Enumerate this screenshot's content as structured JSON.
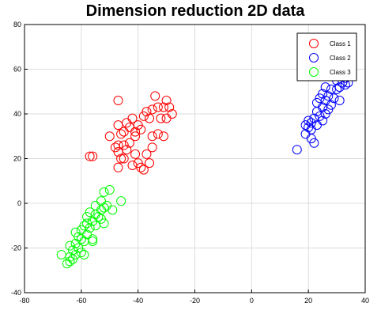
{
  "chart_data": {
    "type": "scatter",
    "title": "Dimension reduction 2D data",
    "xlabel": "",
    "ylabel": "",
    "xlim": [
      -80,
      40
    ],
    "ylim": [
      -40,
      80
    ],
    "xticks": [
      -80,
      -60,
      -40,
      -20,
      0,
      20,
      40
    ],
    "yticks": [
      -40,
      -20,
      0,
      20,
      40,
      60,
      80
    ],
    "grid": true,
    "legend_position": "top-right",
    "marker": "open-circle",
    "series": [
      {
        "name": "Class 1",
        "color": "#ff0000",
        "points": [
          [
            -47,
            46
          ],
          [
            -34,
            48
          ],
          [
            -30,
            46
          ],
          [
            -33,
            43
          ],
          [
            -31,
            43
          ],
          [
            -29,
            43
          ],
          [
            -35,
            42
          ],
          [
            -37,
            41
          ],
          [
            -28,
            40
          ],
          [
            -38,
            39
          ],
          [
            -42,
            38
          ],
          [
            -36,
            38
          ],
          [
            -32,
            38
          ],
          [
            -30,
            38
          ],
          [
            -44,
            36
          ],
          [
            -40,
            35
          ],
          [
            -47,
            35
          ],
          [
            -43,
            34
          ],
          [
            -39,
            33
          ],
          [
            -41,
            32
          ],
          [
            -45,
            32
          ],
          [
            -46,
            31
          ],
          [
            -33,
            31
          ],
          [
            -35,
            30
          ],
          [
            -31,
            30
          ],
          [
            -50,
            30
          ],
          [
            -41,
            30
          ],
          [
            -43,
            27
          ],
          [
            -45,
            26
          ],
          [
            -47,
            26
          ],
          [
            -48,
            25
          ],
          [
            -44,
            24
          ],
          [
            -35,
            25
          ],
          [
            -47,
            23
          ],
          [
            -57,
            21
          ],
          [
            -56,
            21
          ],
          [
            -41,
            22
          ],
          [
            -37,
            22
          ],
          [
            -46,
            20
          ],
          [
            -45,
            20
          ],
          [
            -40,
            18
          ],
          [
            -36,
            18
          ],
          [
            -42,
            17
          ],
          [
            -39,
            16
          ],
          [
            -47,
            16
          ],
          [
            -38,
            15
          ]
        ]
      },
      {
        "name": "Class 2",
        "color": "#0000ff",
        "points": [
          [
            35,
            61
          ],
          [
            32,
            57
          ],
          [
            33,
            56
          ],
          [
            30,
            55
          ],
          [
            32,
            54
          ],
          [
            34,
            54
          ],
          [
            33,
            53
          ],
          [
            31,
            52
          ],
          [
            26,
            52
          ],
          [
            28,
            51
          ],
          [
            30,
            51
          ],
          [
            25,
            49
          ],
          [
            27,
            48
          ],
          [
            24,
            47
          ],
          [
            29,
            47
          ],
          [
            26,
            46
          ],
          [
            31,
            46
          ],
          [
            23,
            45
          ],
          [
            28,
            44
          ],
          [
            25,
            43
          ],
          [
            27,
            42
          ],
          [
            23,
            41
          ],
          [
            26,
            40
          ],
          [
            24,
            39
          ],
          [
            22,
            38
          ],
          [
            25,
            37
          ],
          [
            20,
            37
          ],
          [
            21,
            36
          ],
          [
            19,
            35
          ],
          [
            23,
            35
          ],
          [
            20,
            34
          ],
          [
            21,
            33
          ],
          [
            19,
            31
          ],
          [
            21,
            29
          ],
          [
            22,
            27
          ],
          [
            16,
            24
          ]
        ]
      },
      {
        "name": "Class 3",
        "color": "#00ff00",
        "points": [
          [
            -50,
            6
          ],
          [
            -52,
            5
          ],
          [
            -46,
            1
          ],
          [
            -53,
            1
          ],
          [
            -55,
            -1
          ],
          [
            -51,
            -1
          ],
          [
            -52,
            -2
          ],
          [
            -49,
            -3
          ],
          [
            -53,
            -3
          ],
          [
            -57,
            -4
          ],
          [
            -55,
            -5
          ],
          [
            -54,
            -6
          ],
          [
            -58,
            -6
          ],
          [
            -53,
            -7
          ],
          [
            -56,
            -8
          ],
          [
            -52,
            -9
          ],
          [
            -58,
            -9
          ],
          [
            -55,
            -10
          ],
          [
            -59,
            -10
          ],
          [
            -57,
            -11
          ],
          [
            -60,
            -12
          ],
          [
            -62,
            -13
          ],
          [
            -58,
            -14
          ],
          [
            -61,
            -15
          ],
          [
            -60,
            -16
          ],
          [
            -56,
            -16
          ],
          [
            -59,
            -17
          ],
          [
            -62,
            -18
          ],
          [
            -56,
            -17
          ],
          [
            -64,
            -19
          ],
          [
            -61,
            -20
          ],
          [
            -63,
            -21
          ],
          [
            -60,
            -22
          ],
          [
            -62,
            -23
          ],
          [
            -67,
            -23
          ],
          [
            -59,
            -23
          ],
          [
            -64,
            -24
          ],
          [
            -63,
            -25
          ],
          [
            -64,
            -26
          ],
          [
            -65,
            -27
          ]
        ]
      }
    ]
  }
}
